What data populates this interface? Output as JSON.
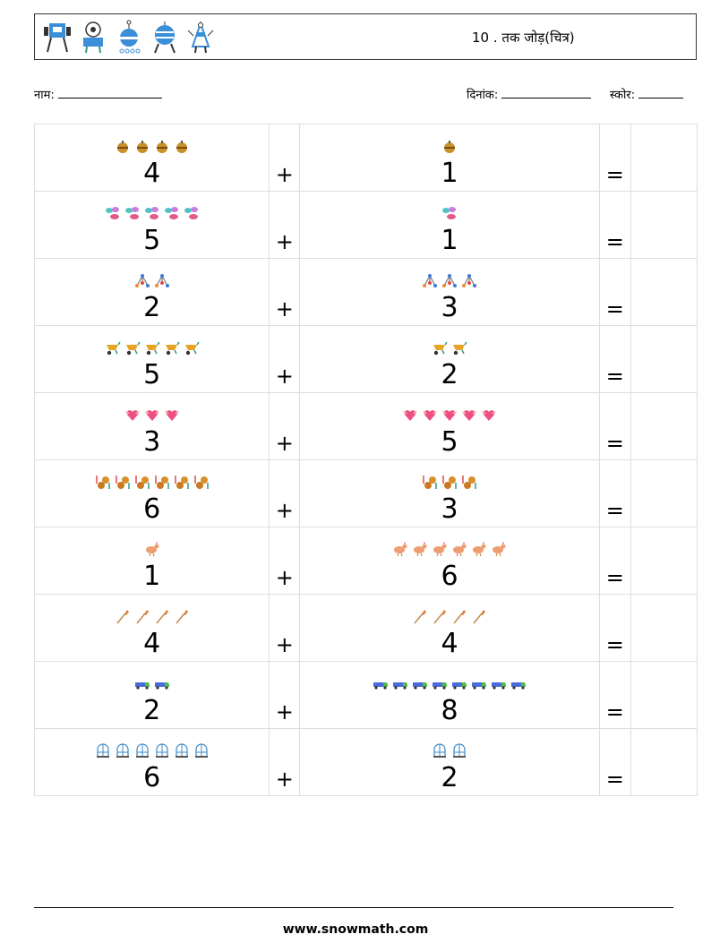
{
  "header": {
    "title": "10 . तक जोड़(चित्र)",
    "robot_icons": [
      "robot-icon",
      "robot-icon",
      "robot-icon",
      "robot-icon",
      "robot-icon"
    ]
  },
  "fields": {
    "name_label": "नाम:",
    "date_label": "दिनांक:",
    "score_label": "स्कोर:"
  },
  "operators": {
    "plus": "+",
    "equals": "="
  },
  "problems": [
    {
      "a": "4",
      "b": "1",
      "icon": "ornament-ball-icon",
      "color": "#c8922a"
    },
    {
      "a": "5",
      "b": "1",
      "icon": "candy-sweets-icon",
      "color": "#e05a8a"
    },
    {
      "a": "2",
      "b": "3",
      "icon": "molecule-icon",
      "color": "#3b7bd9"
    },
    {
      "a": "5",
      "b": "2",
      "icon": "wheelbarrow-icon",
      "color": "#e6a422"
    },
    {
      "a": "3",
      "b": "5",
      "icon": "heart-wings-icon",
      "color": "#ef4f7e"
    },
    {
      "a": "6",
      "b": "3",
      "icon": "coins-arrows-icon",
      "color": "#d9902a"
    },
    {
      "a": "1",
      "b": "6",
      "icon": "hen-icon",
      "color": "#ee9d72"
    },
    {
      "a": "4",
      "b": "4",
      "icon": "paintbrush-icon",
      "color": "#e07a35"
    },
    {
      "a": "2",
      "b": "8",
      "icon": "truck-icon",
      "color": "#52b848"
    },
    {
      "a": "6",
      "b": "2",
      "icon": "birdcage-icon",
      "color": "#3a89c9"
    }
  ],
  "footer": {
    "website": "www.snowmath.com"
  }
}
